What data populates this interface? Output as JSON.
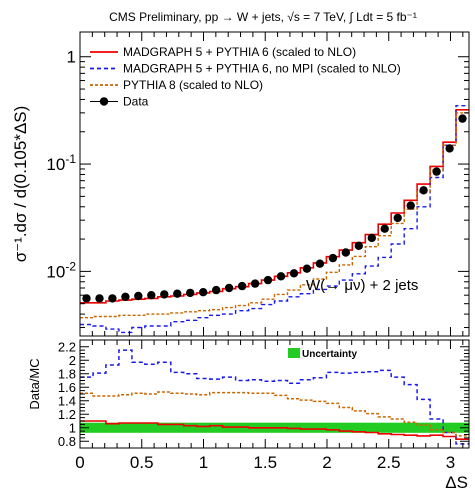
{
  "header": "CMS Preliminary,  pp → W + jets,  √s = 7 TeV,   ∫ Ldt = 5 fb⁻¹",
  "chart_data": [
    {
      "type": "line",
      "ylabel": "σ⁻¹.dσ / d(0.105*ΔS)",
      "xlim": [
        0,
        3.15
      ],
      "ylim": [
        0.0025,
        1.7
      ],
      "log_y": true,
      "annotation": "W(→ μν) + 2 jets",
      "legend_position": "top-left",
      "y_ticks": [
        {
          "v": 0.01,
          "b": "10",
          "e": "-2"
        },
        {
          "v": 0.1,
          "b": "10",
          "e": "-1"
        },
        {
          "v": 1,
          "b": "1",
          "e": ""
        }
      ],
      "x": [
        0.0525,
        0.1575,
        0.2625,
        0.3675,
        0.4725,
        0.5775,
        0.6825,
        0.7875,
        0.8925,
        0.9975,
        1.1025,
        1.2075,
        1.3125,
        1.4175,
        1.5225,
        1.6275,
        1.7325,
        1.8375,
        1.9425,
        2.0475,
        2.1525,
        2.2575,
        2.3625,
        2.4675,
        2.5725,
        2.6775,
        2.7825,
        2.8875,
        2.9925,
        3.0975
      ],
      "series": [
        {
          "name": "MADGRAPH 5 + PYTHIA 6 (scaled to NLO)",
          "color": "#ee0000",
          "dash": "solid",
          "style": "step",
          "values": [
            0.0051,
            0.0051,
            0.0053,
            0.0054,
            0.0055,
            0.0056,
            0.0058,
            0.0059,
            0.0061,
            0.0063,
            0.0065,
            0.0069,
            0.0072,
            0.0077,
            0.0083,
            0.009,
            0.0097,
            0.0108,
            0.012,
            0.0137,
            0.0158,
            0.0185,
            0.022,
            0.0275,
            0.035,
            0.046,
            0.065,
            0.095,
            0.16,
            0.32
          ]
        },
        {
          "name": "MADGRAPH 5 + PYTHIA 6, no MPI (scaled to NLO)",
          "color": "#1a1aee",
          "dash": "4,3",
          "style": "step",
          "values": [
            0.0032,
            0.0031,
            0.0029,
            0.0027,
            0.003,
            0.0031,
            0.0031,
            0.0034,
            0.0035,
            0.0037,
            0.0039,
            0.004,
            0.0043,
            0.0045,
            0.0049,
            0.0053,
            0.0058,
            0.0062,
            0.0068,
            0.0073,
            0.0083,
            0.0095,
            0.0112,
            0.0135,
            0.018,
            0.025,
            0.04,
            0.075,
            0.15,
            0.35
          ]
        },
        {
          "name": "PYTHIA 8 (scaled to NLO)",
          "color": "#cc6600",
          "dash": "3,2",
          "style": "step",
          "values": [
            0.0037,
            0.0038,
            0.0038,
            0.0039,
            0.0039,
            0.004,
            0.004,
            0.0041,
            0.0042,
            0.0043,
            0.0044,
            0.0046,
            0.0048,
            0.0051,
            0.0055,
            0.0061,
            0.0067,
            0.0075,
            0.0085,
            0.0098,
            0.0115,
            0.0138,
            0.017,
            0.0215,
            0.028,
            0.038,
            0.055,
            0.088,
            0.15,
            0.3
          ]
        },
        {
          "name": "Data",
          "color": "#000000",
          "style": "marker",
          "values": [
            0.0056,
            0.0056,
            0.0056,
            0.0058,
            0.0059,
            0.006,
            0.0061,
            0.0062,
            0.0063,
            0.0064,
            0.0067,
            0.007,
            0.0073,
            0.0077,
            0.0083,
            0.009,
            0.0096,
            0.0106,
            0.0118,
            0.0133,
            0.015,
            0.0173,
            0.0205,
            0.025,
            0.0315,
            0.041,
            0.057,
            0.085,
            0.14,
            0.265
          ]
        }
      ]
    },
    {
      "type": "line",
      "xlabel": "ΔS",
      "ylabel": "Data/MC",
      "xlim": [
        0,
        3.15
      ],
      "ylim": [
        0.7,
        2.3
      ],
      "x_ticks": [
        {
          "v": 0,
          "l": "0"
        },
        {
          "v": 0.5,
          "l": "0.5"
        },
        {
          "v": 1,
          "l": "1"
        },
        {
          "v": 1.5,
          "l": "1.5"
        },
        {
          "v": 2,
          "l": "2"
        },
        {
          "v": 2.5,
          "l": "2.5"
        },
        {
          "v": 3,
          "l": "3"
        }
      ],
      "y_ticks": [
        {
          "v": 0.8,
          "l": "0.8"
        },
        {
          "v": 1.0,
          "l": "1"
        },
        {
          "v": 1.2,
          "l": "1.2"
        },
        {
          "v": 1.4,
          "l": "1.4"
        },
        {
          "v": 1.6,
          "l": "1.6"
        },
        {
          "v": 1.8,
          "l": "1.8"
        },
        {
          "v": 2.0,
          "l": "2"
        },
        {
          "v": 2.2,
          "l": "2.2"
        }
      ],
      "band": {
        "label": "Uncertainty",
        "color": "#22cc22",
        "low": 0.925,
        "high": 1.075
      },
      "series": [
        {
          "color": "#ee0000",
          "dash": "solid",
          "values": [
            1.1,
            1.1,
            1.06,
            1.07,
            1.07,
            1.07,
            1.05,
            1.05,
            1.03,
            1.02,
            1.03,
            1.01,
            1.01,
            1.0,
            1.0,
            1.0,
            0.99,
            0.98,
            0.98,
            0.97,
            0.95,
            0.94,
            0.93,
            0.91,
            0.9,
            0.89,
            0.88,
            0.89,
            0.87,
            0.83
          ]
        },
        {
          "color": "#1a1aee",
          "dash": "4,3",
          "values": [
            1.75,
            1.81,
            1.93,
            2.15,
            1.97,
            1.94,
            1.97,
            1.82,
            1.8,
            1.73,
            1.72,
            1.75,
            1.7,
            1.71,
            1.69,
            1.7,
            1.66,
            1.71,
            1.74,
            1.82,
            1.81,
            1.82,
            1.83,
            1.85,
            1.75,
            1.64,
            1.42,
            1.13,
            0.93,
            0.76
          ]
        },
        {
          "color": "#cc6600",
          "dash": "3,2",
          "values": [
            1.51,
            1.47,
            1.47,
            1.49,
            1.51,
            1.5,
            1.53,
            1.51,
            1.5,
            1.49,
            1.52,
            1.52,
            1.52,
            1.51,
            1.51,
            1.48,
            1.43,
            1.41,
            1.39,
            1.36,
            1.3,
            1.25,
            1.21,
            1.16,
            1.13,
            1.08,
            1.04,
            0.97,
            0.93,
            0.88
          ]
        }
      ]
    }
  ]
}
